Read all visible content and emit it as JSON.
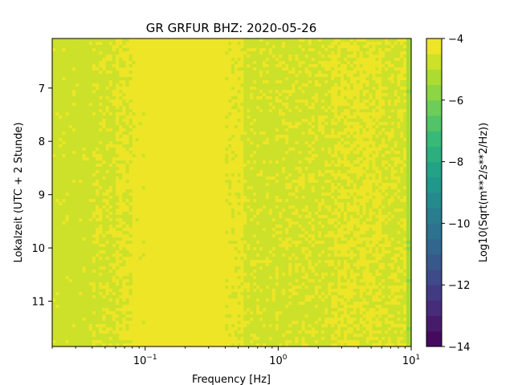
{
  "chart_data": {
    "type": "heatmap",
    "title": "GR GRFUR  BHZ: 2020-05-26",
    "xlabel": "Frequency [Hz]",
    "ylabel": "Lokalzeit (UTC + 2 Stunde)",
    "x_scale": "log",
    "xlim": [
      0.02,
      10
    ],
    "x_ticks": [
      {
        "value": 0.1,
        "base": "10",
        "exp": "−1"
      },
      {
        "value": 1,
        "base": "10",
        "exp": "0"
      },
      {
        "value": 10,
        "base": "10",
        "exp": "1"
      }
    ],
    "ylim": [
      6.07,
      11.85
    ],
    "y_inverted": true,
    "y_ticks": [
      7,
      8,
      9,
      10,
      11
    ],
    "y_tick_labels": [
      "7",
      "8",
      "9",
      "10",
      "11"
    ],
    "colorbar": {
      "label": "Log10(Sqrt(m**2/s**2/Hz))",
      "range": [
        -14,
        -4
      ],
      "ticks": [
        -4,
        -6,
        -8,
        -10,
        -12,
        -14
      ],
      "tick_labels": [
        "−4",
        "−6",
        "−8",
        "−10",
        "−12",
        "−14"
      ],
      "colormap": "viridis",
      "levels": 20
    },
    "frequency_bands": [
      {
        "f_min": 0.02,
        "f_max": 0.04,
        "level": -4.7
      },
      {
        "f_min": 0.04,
        "f_max": 0.06,
        "level": -4.6
      },
      {
        "f_min": 0.06,
        "f_max": 0.08,
        "level": -4.45
      },
      {
        "f_min": 0.08,
        "f_max": 0.1,
        "level": -4.3
      },
      {
        "f_min": 0.1,
        "f_max": 0.4,
        "level": -4.05
      },
      {
        "f_min": 0.4,
        "f_max": 0.55,
        "level": -4.35
      },
      {
        "f_min": 0.55,
        "f_max": 0.9,
        "level": -4.65
      },
      {
        "f_min": 0.9,
        "f_max": 2.5,
        "level": -4.6
      },
      {
        "f_min": 2.5,
        "f_max": 6,
        "level": -4.45
      },
      {
        "f_min": 6,
        "f_max": 9.2,
        "level": -4.55
      },
      {
        "f_min": 9.2,
        "f_max": 10,
        "level": -5.3
      }
    ]
  },
  "colors": {
    "viridis_stops": [
      "#440154",
      "#482878",
      "#3e4989",
      "#31688e",
      "#26828e",
      "#1f9e89",
      "#35b779",
      "#6ece58",
      "#b5de2b",
      "#fde725"
    ]
  }
}
